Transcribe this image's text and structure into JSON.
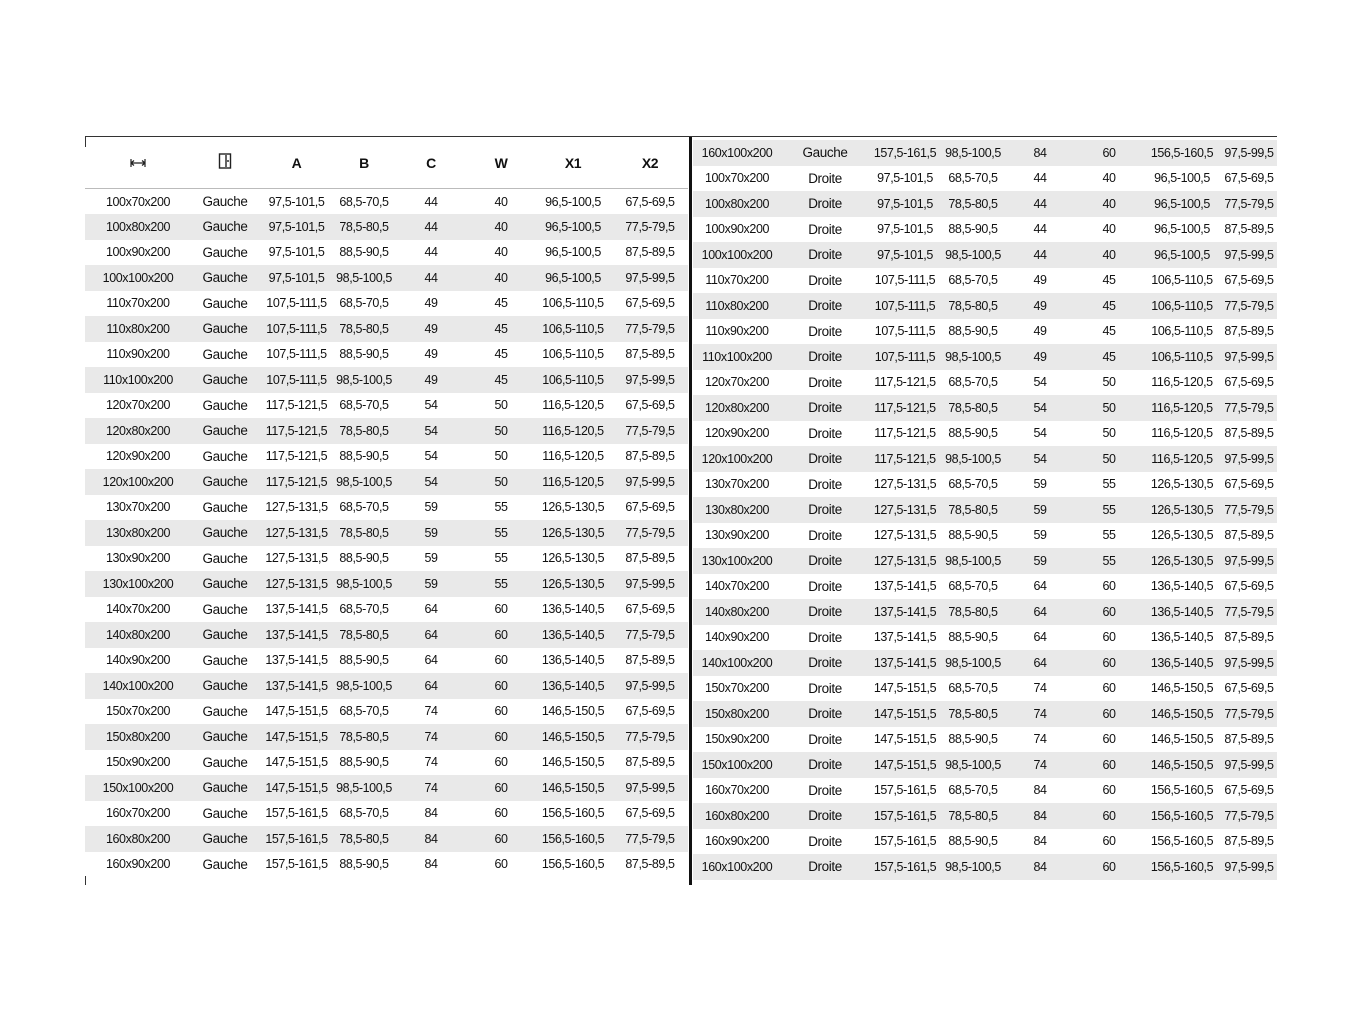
{
  "headers": {
    "width_icon": "width-arrows-icon",
    "door_icon": "door-icon",
    "cols": [
      "A",
      "B",
      "C",
      "W",
      "X1",
      "X2"
    ]
  },
  "left_rows": [
    [
      "100x70x200",
      "Gauche",
      "97,5-101,5",
      "68,5-70,5",
      "44",
      "40",
      "96,5-100,5",
      "67,5-69,5"
    ],
    [
      "100x80x200",
      "Gauche",
      "97,5-101,5",
      "78,5-80,5",
      "44",
      "40",
      "96,5-100,5",
      "77,5-79,5"
    ],
    [
      "100x90x200",
      "Gauche",
      "97,5-101,5",
      "88,5-90,5",
      "44",
      "40",
      "96,5-100,5",
      "87,5-89,5"
    ],
    [
      "100x100x200",
      "Gauche",
      "97,5-101,5",
      "98,5-100,5",
      "44",
      "40",
      "96,5-100,5",
      "97,5-99,5"
    ],
    [
      "110x70x200",
      "Gauche",
      "107,5-111,5",
      "68,5-70,5",
      "49",
      "45",
      "106,5-110,5",
      "67,5-69,5"
    ],
    [
      "110x80x200",
      "Gauche",
      "107,5-111,5",
      "78,5-80,5",
      "49",
      "45",
      "106,5-110,5",
      "77,5-79,5"
    ],
    [
      "110x90x200",
      "Gauche",
      "107,5-111,5",
      "88,5-90,5",
      "49",
      "45",
      "106,5-110,5",
      "87,5-89,5"
    ],
    [
      "110x100x200",
      "Gauche",
      "107,5-111,5",
      "98,5-100,5",
      "49",
      "45",
      "106,5-110,5",
      "97,5-99,5"
    ],
    [
      "120x70x200",
      "Gauche",
      "117,5-121,5",
      "68,5-70,5",
      "54",
      "50",
      "116,5-120,5",
      "67,5-69,5"
    ],
    [
      "120x80x200",
      "Gauche",
      "117,5-121,5",
      "78,5-80,5",
      "54",
      "50",
      "116,5-120,5",
      "77,5-79,5"
    ],
    [
      "120x90x200",
      "Gauche",
      "117,5-121,5",
      "88,5-90,5",
      "54",
      "50",
      "116,5-120,5",
      "87,5-89,5"
    ],
    [
      "120x100x200",
      "Gauche",
      "117,5-121,5",
      "98,5-100,5",
      "54",
      "50",
      "116,5-120,5",
      "97,5-99,5"
    ],
    [
      "130x70x200",
      "Gauche",
      "127,5-131,5",
      "68,5-70,5",
      "59",
      "55",
      "126,5-130,5",
      "67,5-69,5"
    ],
    [
      "130x80x200",
      "Gauche",
      "127,5-131,5",
      "78,5-80,5",
      "59",
      "55",
      "126,5-130,5",
      "77,5-79,5"
    ],
    [
      "130x90x200",
      "Gauche",
      "127,5-131,5",
      "88,5-90,5",
      "59",
      "55",
      "126,5-130,5",
      "87,5-89,5"
    ],
    [
      "130x100x200",
      "Gauche",
      "127,5-131,5",
      "98,5-100,5",
      "59",
      "55",
      "126,5-130,5",
      "97,5-99,5"
    ],
    [
      "140x70x200",
      "Gauche",
      "137,5-141,5",
      "68,5-70,5",
      "64",
      "60",
      "136,5-140,5",
      "67,5-69,5"
    ],
    [
      "140x80x200",
      "Gauche",
      "137,5-141,5",
      "78,5-80,5",
      "64",
      "60",
      "136,5-140,5",
      "77,5-79,5"
    ],
    [
      "140x90x200",
      "Gauche",
      "137,5-141,5",
      "88,5-90,5",
      "64",
      "60",
      "136,5-140,5",
      "87,5-89,5"
    ],
    [
      "140x100x200",
      "Gauche",
      "137,5-141,5",
      "98,5-100,5",
      "64",
      "60",
      "136,5-140,5",
      "97,5-99,5"
    ],
    [
      "150x70x200",
      "Gauche",
      "147,5-151,5",
      "68,5-70,5",
      "74",
      "60",
      "146,5-150,5",
      "67,5-69,5"
    ],
    [
      "150x80x200",
      "Gauche",
      "147,5-151,5",
      "78,5-80,5",
      "74",
      "60",
      "146,5-150,5",
      "77,5-79,5"
    ],
    [
      "150x90x200",
      "Gauche",
      "147,5-151,5",
      "88,5-90,5",
      "74",
      "60",
      "146,5-150,5",
      "87,5-89,5"
    ],
    [
      "150x100x200",
      "Gauche",
      "147,5-151,5",
      "98,5-100,5",
      "74",
      "60",
      "146,5-150,5",
      "97,5-99,5"
    ],
    [
      "160x70x200",
      "Gauche",
      "157,5-161,5",
      "68,5-70,5",
      "84",
      "60",
      "156,5-160,5",
      "67,5-69,5"
    ],
    [
      "160x80x200",
      "Gauche",
      "157,5-161,5",
      "78,5-80,5",
      "84",
      "60",
      "156,5-160,5",
      "77,5-79,5"
    ],
    [
      "160x90x200",
      "Gauche",
      "157,5-161,5",
      "88,5-90,5",
      "84",
      "60",
      "156,5-160,5",
      "87,5-89,5"
    ]
  ],
  "right_rows": [
    [
      "160x100x200",
      "Gauche",
      "157,5-161,5",
      "98,5-100,5",
      "84",
      "60",
      "156,5-160,5",
      "97,5-99,5"
    ],
    [
      "100x70x200",
      "Droite",
      "97,5-101,5",
      "68,5-70,5",
      "44",
      "40",
      "96,5-100,5",
      "67,5-69,5"
    ],
    [
      "100x80x200",
      "Droite",
      "97,5-101,5",
      "78,5-80,5",
      "44",
      "40",
      "96,5-100,5",
      "77,5-79,5"
    ],
    [
      "100x90x200",
      "Droite",
      "97,5-101,5",
      "88,5-90,5",
      "44",
      "40",
      "96,5-100,5",
      "87,5-89,5"
    ],
    [
      "100x100x200",
      "Droite",
      "97,5-101,5",
      "98,5-100,5",
      "44",
      "40",
      "96,5-100,5",
      "97,5-99,5"
    ],
    [
      "110x70x200",
      "Droite",
      "107,5-111,5",
      "68,5-70,5",
      "49",
      "45",
      "106,5-110,5",
      "67,5-69,5"
    ],
    [
      "110x80x200",
      "Droite",
      "107,5-111,5",
      "78,5-80,5",
      "49",
      "45",
      "106,5-110,5",
      "77,5-79,5"
    ],
    [
      "110x90x200",
      "Droite",
      "107,5-111,5",
      "88,5-90,5",
      "49",
      "45",
      "106,5-110,5",
      "87,5-89,5"
    ],
    [
      "110x100x200",
      "Droite",
      "107,5-111,5",
      "98,5-100,5",
      "49",
      "45",
      "106,5-110,5",
      "97,5-99,5"
    ],
    [
      "120x70x200",
      "Droite",
      "117,5-121,5",
      "68,5-70,5",
      "54",
      "50",
      "116,5-120,5",
      "67,5-69,5"
    ],
    [
      "120x80x200",
      "Droite",
      "117,5-121,5",
      "78,5-80,5",
      "54",
      "50",
      "116,5-120,5",
      "77,5-79,5"
    ],
    [
      "120x90x200",
      "Droite",
      "117,5-121,5",
      "88,5-90,5",
      "54",
      "50",
      "116,5-120,5",
      "87,5-89,5"
    ],
    [
      "120x100x200",
      "Droite",
      "117,5-121,5",
      "98,5-100,5",
      "54",
      "50",
      "116,5-120,5",
      "97,5-99,5"
    ],
    [
      "130x70x200",
      "Droite",
      "127,5-131,5",
      "68,5-70,5",
      "59",
      "55",
      "126,5-130,5",
      "67,5-69,5"
    ],
    [
      "130x80x200",
      "Droite",
      "127,5-131,5",
      "78,5-80,5",
      "59",
      "55",
      "126,5-130,5",
      "77,5-79,5"
    ],
    [
      "130x90x200",
      "Droite",
      "127,5-131,5",
      "88,5-90,5",
      "59",
      "55",
      "126,5-130,5",
      "87,5-89,5"
    ],
    [
      "130x100x200",
      "Droite",
      "127,5-131,5",
      "98,5-100,5",
      "59",
      "55",
      "126,5-130,5",
      "97,5-99,5"
    ],
    [
      "140x70x200",
      "Droite",
      "137,5-141,5",
      "68,5-70,5",
      "64",
      "60",
      "136,5-140,5",
      "67,5-69,5"
    ],
    [
      "140x80x200",
      "Droite",
      "137,5-141,5",
      "78,5-80,5",
      "64",
      "60",
      "136,5-140,5",
      "77,5-79,5"
    ],
    [
      "140x90x200",
      "Droite",
      "137,5-141,5",
      "88,5-90,5",
      "64",
      "60",
      "136,5-140,5",
      "87,5-89,5"
    ],
    [
      "140x100x200",
      "Droite",
      "137,5-141,5",
      "98,5-100,5",
      "64",
      "60",
      "136,5-140,5",
      "97,5-99,5"
    ],
    [
      "150x70x200",
      "Droite",
      "147,5-151,5",
      "68,5-70,5",
      "74",
      "60",
      "146,5-150,5",
      "67,5-69,5"
    ],
    [
      "150x80x200",
      "Droite",
      "147,5-151,5",
      "78,5-80,5",
      "74",
      "60",
      "146,5-150,5",
      "77,5-79,5"
    ],
    [
      "150x90x200",
      "Droite",
      "147,5-151,5",
      "88,5-90,5",
      "74",
      "60",
      "146,5-150,5",
      "87,5-89,5"
    ],
    [
      "150x100x200",
      "Droite",
      "147,5-151,5",
      "98,5-100,5",
      "74",
      "60",
      "146,5-150,5",
      "97,5-99,5"
    ],
    [
      "160x70x200",
      "Droite",
      "157,5-161,5",
      "68,5-70,5",
      "84",
      "60",
      "156,5-160,5",
      "67,5-69,5"
    ],
    [
      "160x80x200",
      "Droite",
      "157,5-161,5",
      "78,5-80,5",
      "84",
      "60",
      "156,5-160,5",
      "77,5-79,5"
    ],
    [
      "160x90x200",
      "Droite",
      "157,5-161,5",
      "88,5-90,5",
      "84",
      "60",
      "156,5-160,5",
      "87,5-89,5"
    ],
    [
      "160x100x200",
      "Droite",
      "157,5-161,5",
      "98,5-100,5",
      "84",
      "60",
      "156,5-160,5",
      "97,5-99,5"
    ]
  ]
}
